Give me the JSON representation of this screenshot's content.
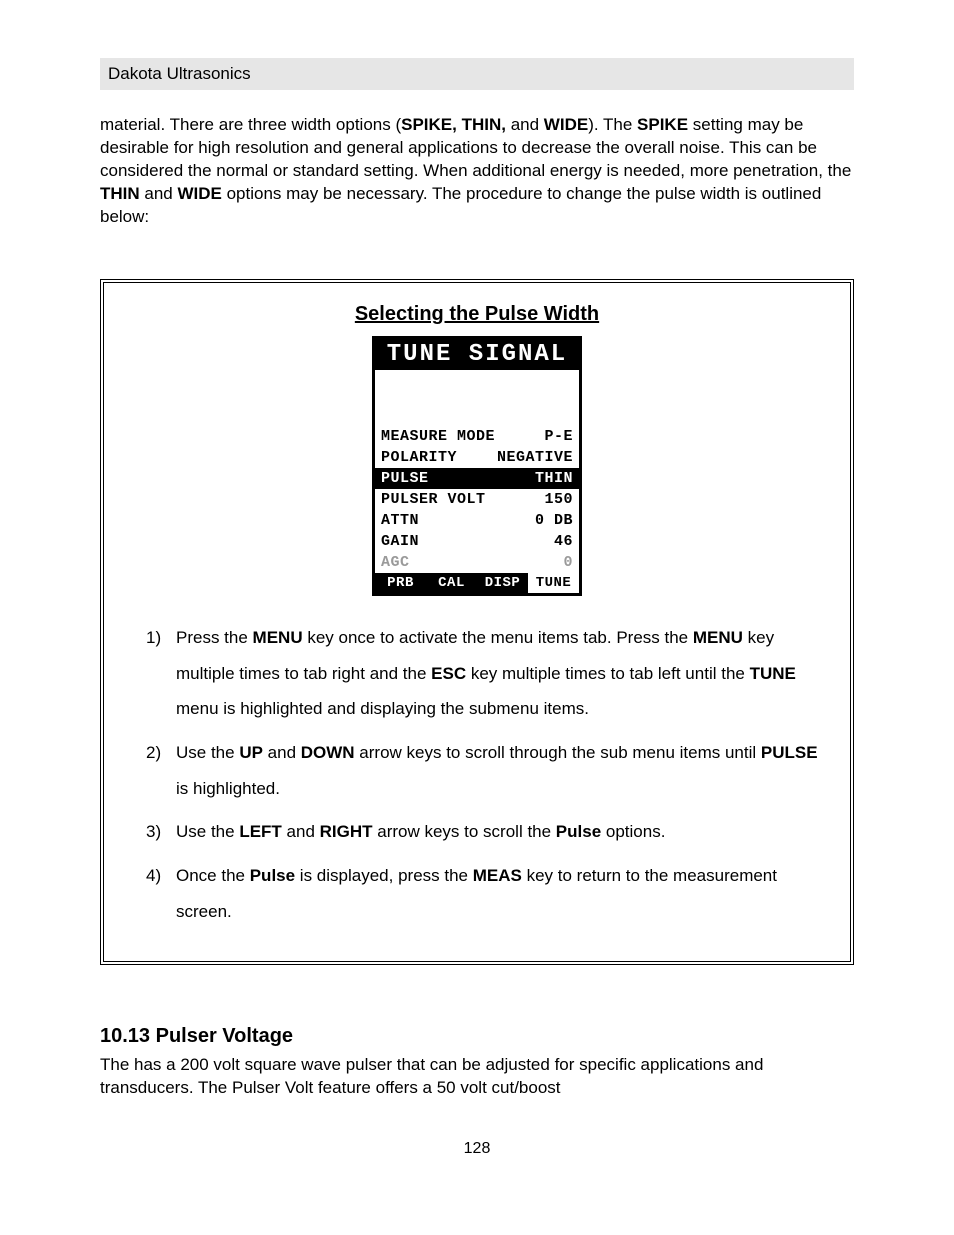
{
  "header": "Dakota Ultrasonics",
  "intro": {
    "p1a": "material.  There are three width options (",
    "b1": "SPIKE, THIN,",
    "p1b": " and ",
    "b2": "WIDE",
    "p1c": ").  The ",
    "b3": "SPIKE",
    "p1d": " setting may be desirable for high resolution and general applications to decrease the overall noise.  This can be considered the normal or standard setting.  When additional energy is needed, more penetration, the ",
    "b4": "THIN",
    "p1e": " and ",
    "b5": "WIDE",
    "p1f": " options may be necessary.  The procedure to change the pulse width is outlined below:"
  },
  "procedure": {
    "title": "Selecting the Pulse Width",
    "lcd": {
      "title": "TUNE SIGNAL",
      "rows": [
        {
          "label": "MEASURE MODE",
          "value": "P-E",
          "selected": false,
          "dim": false
        },
        {
          "label": "POLARITY",
          "value": "NEGATIVE",
          "selected": false,
          "dim": false
        },
        {
          "label": "PULSE",
          "value": "THIN",
          "selected": true,
          "dim": false
        },
        {
          "label": "PULSER VOLT",
          "value": "150",
          "selected": false,
          "dim": false
        },
        {
          "label": "ATTN",
          "value": "0 DB",
          "selected": false,
          "dim": false
        },
        {
          "label": "GAIN",
          "value": "46",
          "selected": false,
          "dim": false
        },
        {
          "label": "AGC",
          "value": "0",
          "selected": false,
          "dim": true
        }
      ],
      "tabs": [
        {
          "label": "PRB",
          "active": false
        },
        {
          "label": "CAL",
          "active": false
        },
        {
          "label": "DISP",
          "active": false
        },
        {
          "label": "TUNE",
          "active": true
        }
      ]
    },
    "steps": [
      {
        "num": "1)",
        "parts": [
          {
            "t": "Press the "
          },
          {
            "b": "MENU"
          },
          {
            "t": " key once to activate the menu items tab.  Press the "
          },
          {
            "b": "MENU"
          },
          {
            "t": " key multiple times to tab right and the "
          },
          {
            "b": "ESC"
          },
          {
            "t": " key multiple times to tab left until the "
          },
          {
            "b": "TUNE"
          },
          {
            "t": " menu is highlighted and displaying the submenu items."
          }
        ]
      },
      {
        "num": "2)",
        "parts": [
          {
            "t": "Use the "
          },
          {
            "b": "UP"
          },
          {
            "t": " and "
          },
          {
            "b": "DOWN"
          },
          {
            "t": " arrow keys to scroll through the sub menu items until "
          },
          {
            "b": "PULSE"
          },
          {
            "t": " is highlighted."
          }
        ]
      },
      {
        "num": "3)",
        "parts": [
          {
            "t": "Use the "
          },
          {
            "b": "LEFT"
          },
          {
            "t": " and "
          },
          {
            "b": "RIGHT"
          },
          {
            "t": " arrow keys to scroll the "
          },
          {
            "b": "Pulse"
          },
          {
            "t": " options."
          }
        ]
      },
      {
        "num": "4)",
        "parts": [
          {
            "t": "Once the "
          },
          {
            "b": "Pulse"
          },
          {
            "t": " is displayed, press the "
          },
          {
            "b": "MEAS"
          },
          {
            "t": " key to return to the measurement screen."
          }
        ]
      }
    ]
  },
  "section": {
    "heading": "10.13 Pulser Voltage",
    "body": "The            has a 200 volt square wave pulser that can be adjusted for specific applications and transducers.  The Pulser Volt feature offers a 50 volt cut/boost"
  },
  "page_number": "128"
}
